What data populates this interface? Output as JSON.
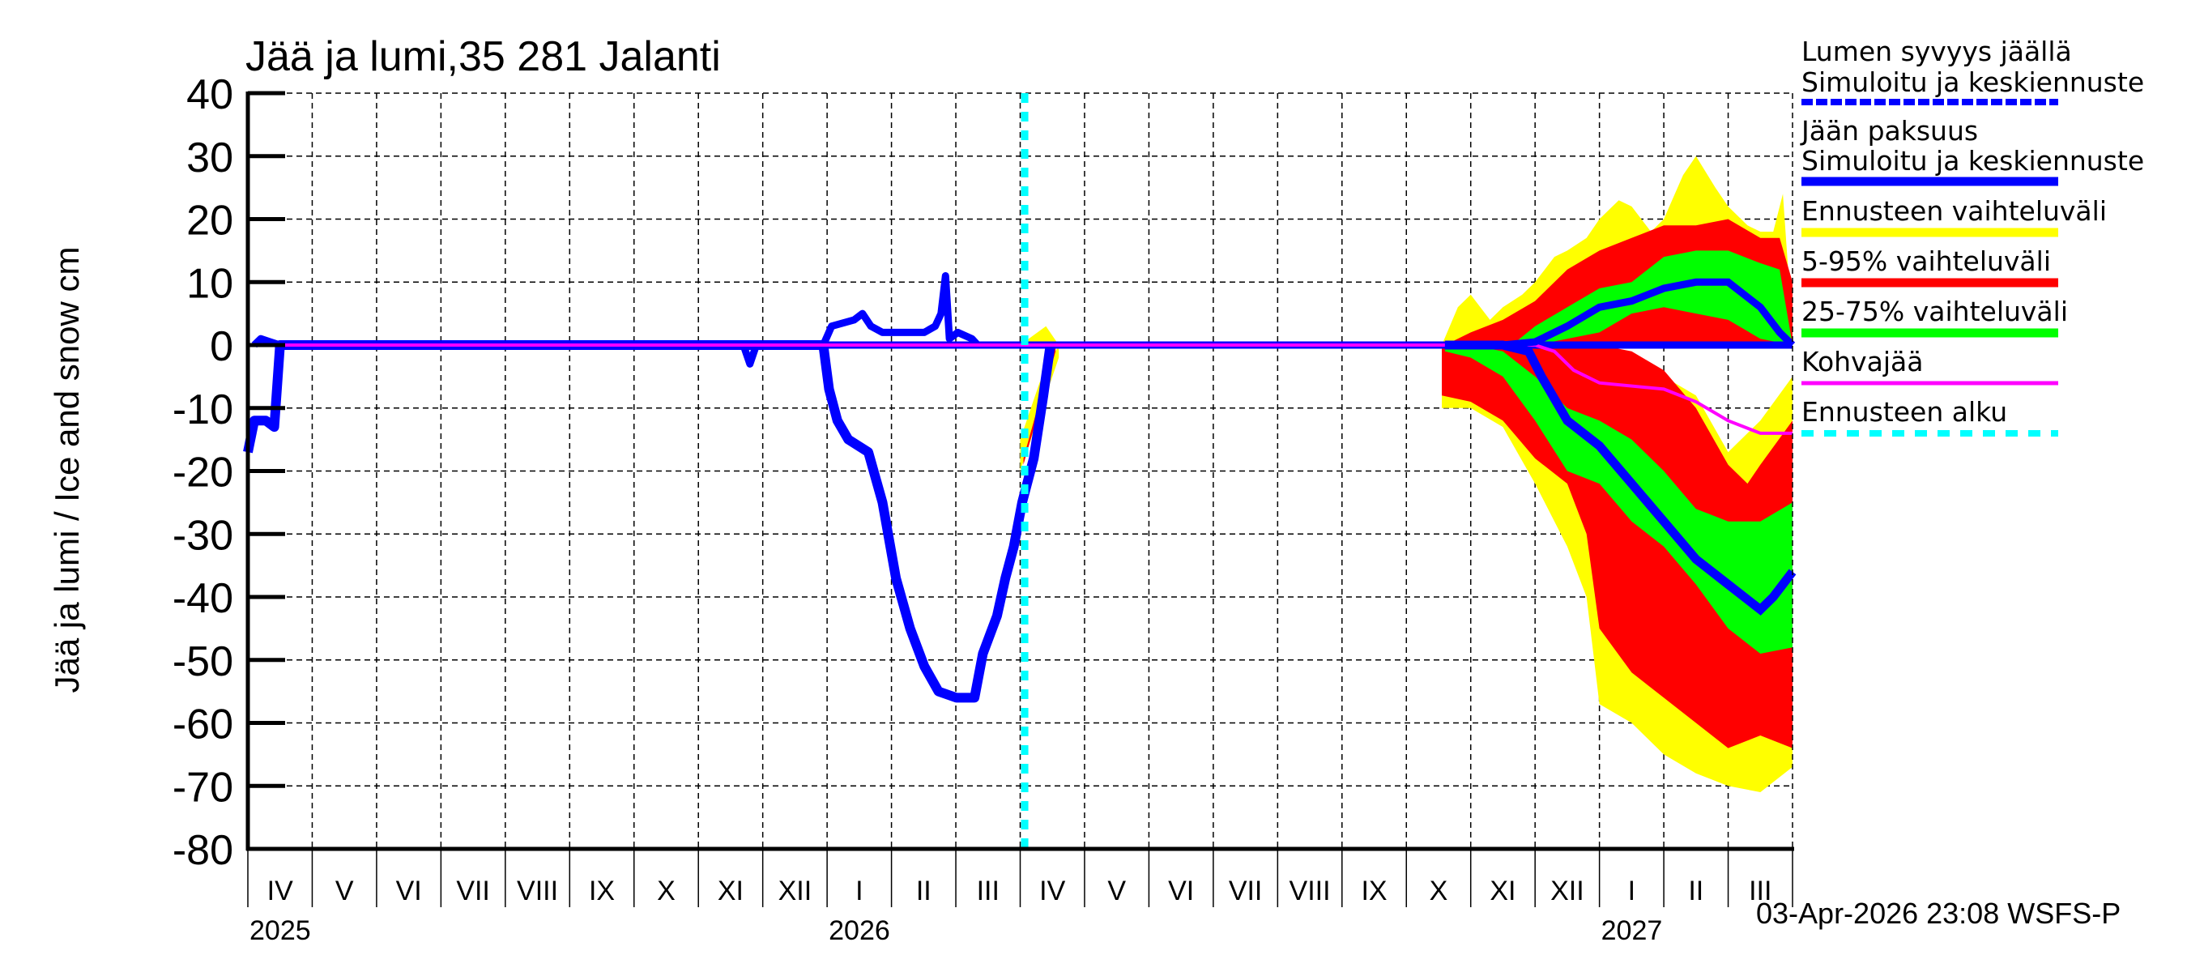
{
  "chart_data": {
    "type": "area",
    "title": "Jää ja lumi,35 281 Jalanti",
    "ylabel": "Jää ja lumi / Ice and snow    cm",
    "xlabel": "",
    "x_unit": "months since 2025-04-01",
    "xlim": [
      0,
      24
    ],
    "ylim": [
      -80,
      40
    ],
    "yticks": [
      40,
      30,
      20,
      10,
      0,
      -10,
      -20,
      -30,
      -40,
      -50,
      -60,
      -70,
      -80
    ],
    "month_labels": [
      "IV",
      "V",
      "VI",
      "VII",
      "VIII",
      "IX",
      "X",
      "XI",
      "XII",
      "I",
      "II",
      "III",
      "IV",
      "V",
      "VI",
      "VII",
      "VIII",
      "IX",
      "X",
      "XI",
      "XII",
      "I",
      "II",
      "III"
    ],
    "years": [
      {
        "label": "2025",
        "month": 0
      },
      {
        "label": "2026",
        "month": 9
      },
      {
        "label": "2027",
        "month": 21
      }
    ],
    "grid": true,
    "forecast_start": 12.07,
    "footer": "03-Apr-2026 23:08 WSFS-P",
    "colors": {
      "ice": "#0000ff",
      "yellow": "#ffff00",
      "red": "#ff0000",
      "green": "#00ff00",
      "magenta": "#ff00ff",
      "cyan": "#00ffff"
    },
    "legend": [
      {
        "line1": "Lumen syvyys jäällä",
        "line2": "Simuloitu ja keskiennuste",
        "color": "#0000ff",
        "style": "dashed-thick"
      },
      {
        "line1": "Jään paksuus",
        "line2": "Simuloitu ja keskiennuste",
        "color": "#0000ff",
        "style": "solid-thick"
      },
      {
        "line1": "Ennusteen vaihteluväli",
        "color": "#ffff00",
        "style": "band"
      },
      {
        "line1": "5-95% vaihteluväli",
        "color": "#ff0000",
        "style": "band"
      },
      {
        "line1": "25-75% vaihteluväli",
        "color": "#00ff00",
        "style": "band"
      },
      {
        "line1": "Kohvajää",
        "color": "#ff00ff",
        "style": "thin"
      },
      {
        "line1": "Ennusteen alku",
        "color": "#00ffff",
        "style": "dashed"
      }
    ],
    "series": {
      "ice_observed": [
        [
          0,
          -17
        ],
        [
          0.1,
          -12
        ],
        [
          0.28,
          -12
        ],
        [
          0.41,
          -13
        ],
        [
          0.5,
          0
        ],
        [
          8.94,
          0
        ],
        [
          9.03,
          -7
        ],
        [
          9.16,
          -12
        ],
        [
          9.33,
          -15
        ],
        [
          9.64,
          -17
        ],
        [
          9.86,
          -25
        ],
        [
          10.07,
          -37
        ],
        [
          10.29,
          -45
        ],
        [
          10.51,
          -51
        ],
        [
          10.73,
          -55
        ],
        [
          11.01,
          -56
        ],
        [
          11.29,
          -56
        ],
        [
          11.42,
          -49
        ],
        [
          11.64,
          -43
        ],
        [
          11.77,
          -37
        ],
        [
          11.9,
          -32
        ],
        [
          12.03,
          -25
        ],
        [
          12.21,
          -18
        ],
        [
          12.36,
          -8
        ],
        [
          12.47,
          0
        ]
      ],
      "snow_observed": [
        [
          0.1,
          0
        ],
        [
          0.2,
          1
        ],
        [
          0.35,
          0.5
        ],
        [
          0.5,
          0
        ],
        [
          7.7,
          0
        ],
        [
          7.8,
          -3
        ],
        [
          7.9,
          0
        ],
        [
          8.94,
          0
        ],
        [
          9.07,
          3
        ],
        [
          9.42,
          4
        ],
        [
          9.55,
          5
        ],
        [
          9.68,
          3
        ],
        [
          9.86,
          2
        ],
        [
          10.51,
          2
        ],
        [
          10.68,
          3
        ],
        [
          10.77,
          5
        ],
        [
          10.84,
          11
        ],
        [
          10.9,
          1
        ],
        [
          11.03,
          2
        ],
        [
          11.25,
          1
        ],
        [
          11.34,
          0
        ]
      ],
      "snow_median": [
        [
          18.6,
          0
        ],
        [
          19.5,
          0
        ],
        [
          20,
          0.5
        ],
        [
          20.5,
          3
        ],
        [
          21,
          6
        ],
        [
          21.5,
          7
        ],
        [
          22,
          9
        ],
        [
          22.5,
          10
        ],
        [
          23,
          10
        ],
        [
          23.5,
          6
        ],
        [
          23.8,
          2
        ],
        [
          24,
          0
        ]
      ],
      "snow_yellow_upper": [
        [
          12.0,
          0
        ],
        [
          12.4,
          3
        ],
        [
          12.6,
          0
        ],
        [
          18.55,
          0
        ],
        [
          18.8,
          6
        ],
        [
          19,
          8
        ],
        [
          19.3,
          4
        ],
        [
          19.5,
          6
        ],
        [
          19.8,
          8
        ],
        [
          20,
          10
        ],
        [
          20.3,
          14
        ],
        [
          20.5,
          15
        ],
        [
          20.8,
          17
        ],
        [
          21,
          20
        ],
        [
          21.3,
          23
        ],
        [
          21.5,
          22
        ],
        [
          21.8,
          18
        ],
        [
          22,
          20
        ],
        [
          22.3,
          27
        ],
        [
          22.5,
          30
        ],
        [
          22.8,
          25
        ],
        [
          23,
          22
        ],
        [
          23.3,
          19
        ],
        [
          23.5,
          18
        ],
        [
          23.7,
          18
        ],
        [
          23.85,
          24
        ],
        [
          24,
          2
        ]
      ],
      "snow_red_upper": [
        [
          18.6,
          0
        ],
        [
          19,
          2
        ],
        [
          19.5,
          4
        ],
        [
          20,
          7
        ],
        [
          20.5,
          12
        ],
        [
          21,
          15
        ],
        [
          21.5,
          17
        ],
        [
          22,
          19
        ],
        [
          22.5,
          19
        ],
        [
          23,
          20
        ],
        [
          23.5,
          17
        ],
        [
          23.8,
          17
        ],
        [
          24,
          10
        ]
      ],
      "snow_green_upper": [
        [
          19,
          0
        ],
        [
          19.7,
          0.5
        ],
        [
          20,
          3
        ],
        [
          20.5,
          6
        ],
        [
          21,
          9
        ],
        [
          21.5,
          10
        ],
        [
          22,
          14
        ],
        [
          22.5,
          15
        ],
        [
          23,
          15
        ],
        [
          23.5,
          13
        ],
        [
          23.8,
          12
        ],
        [
          24,
          0
        ]
      ],
      "snow_green_lower": [
        [
          19,
          0
        ],
        [
          20,
          0
        ],
        [
          20.5,
          1
        ],
        [
          21,
          2
        ],
        [
          21.5,
          5
        ],
        [
          22,
          6
        ],
        [
          22.5,
          5
        ],
        [
          23,
          4
        ],
        [
          23.5,
          1
        ],
        [
          24,
          0
        ]
      ],
      "ice_median": [
        [
          18.6,
          0
        ],
        [
          19.5,
          0
        ],
        [
          19.9,
          -1
        ],
        [
          20.1,
          -5
        ],
        [
          20.5,
          -12
        ],
        [
          21,
          -16
        ],
        [
          21.5,
          -22
        ],
        [
          22,
          -28
        ],
        [
          22.5,
          -34
        ],
        [
          23,
          -38
        ],
        [
          23.5,
          -42
        ],
        [
          23.7,
          -40
        ],
        [
          24,
          -36
        ]
      ],
      "ice_yellow_upper": [
        [
          12.0,
          -15
        ],
        [
          12.3,
          -6
        ],
        [
          12.6,
          0
        ],
        [
          18.55,
          0
        ],
        [
          21.1,
          0
        ],
        [
          21.2,
          -1
        ],
        [
          21.5,
          -3
        ],
        [
          22,
          -5
        ],
        [
          22.5,
          -8
        ],
        [
          23,
          -17
        ],
        [
          23.5,
          -12
        ],
        [
          24,
          -5
        ]
      ],
      "ice_red_upper": [
        [
          12.05,
          -18
        ],
        [
          12.35,
          -7
        ],
        [
          12.55,
          0
        ],
        [
          18.55,
          0
        ],
        [
          21,
          0
        ],
        [
          21.5,
          -1
        ],
        [
          22,
          -4
        ],
        [
          22.5,
          -10
        ],
        [
          23,
          -19
        ],
        [
          23.3,
          -22
        ],
        [
          23.5,
          -19
        ],
        [
          24,
          -12
        ]
      ],
      "ice_green_upper": [
        [
          18.6,
          0
        ],
        [
          19,
          0
        ],
        [
          19.5,
          -1
        ],
        [
          20,
          -5
        ],
        [
          20.5,
          -10
        ],
        [
          21,
          -12
        ],
        [
          21.5,
          -15
        ],
        [
          22,
          -20
        ],
        [
          22.5,
          -26
        ],
        [
          23,
          -28
        ],
        [
          23.5,
          -28
        ],
        [
          24,
          -25
        ]
      ],
      "ice_green_lower": [
        [
          18.6,
          -1
        ],
        [
          19,
          -2
        ],
        [
          19.5,
          -5
        ],
        [
          20,
          -12
        ],
        [
          20.5,
          -20
        ],
        [
          21,
          -22
        ],
        [
          21.5,
          -28
        ],
        [
          22,
          -32
        ],
        [
          22.5,
          -38
        ],
        [
          23,
          -45
        ],
        [
          23.5,
          -49
        ],
        [
          24,
          -48
        ]
      ],
      "ice_red_lower": [
        [
          18.55,
          -8
        ],
        [
          19,
          -9
        ],
        [
          19.5,
          -12
        ],
        [
          20,
          -18
        ],
        [
          20.5,
          -22
        ],
        [
          20.8,
          -30
        ],
        [
          21,
          -45
        ],
        [
          21.5,
          -52
        ],
        [
          22,
          -56
        ],
        [
          22.5,
          -60
        ],
        [
          23,
          -64
        ],
        [
          23.5,
          -62
        ],
        [
          24,
          -64
        ]
      ],
      "ice_yellow_lower": [
        [
          18.55,
          -10
        ],
        [
          19,
          -10
        ],
        [
          19.5,
          -13
        ],
        [
          20,
          -22
        ],
        [
          20.5,
          -32
        ],
        [
          20.8,
          -40
        ],
        [
          21,
          -57
        ],
        [
          21.5,
          -60
        ],
        [
          22,
          -65
        ],
        [
          22.5,
          -68
        ],
        [
          23,
          -70
        ],
        [
          23.5,
          -71
        ],
        [
          24,
          -67
        ]
      ],
      "kohvajaa": [
        [
          0,
          0
        ],
        [
          20,
          0
        ],
        [
          20.3,
          -1
        ],
        [
          20.6,
          -4
        ],
        [
          21,
          -6
        ],
        [
          22,
          -7
        ],
        [
          22.5,
          -9
        ],
        [
          23,
          -12
        ],
        [
          23.5,
          -14
        ],
        [
          24,
          -14
        ]
      ]
    }
  }
}
